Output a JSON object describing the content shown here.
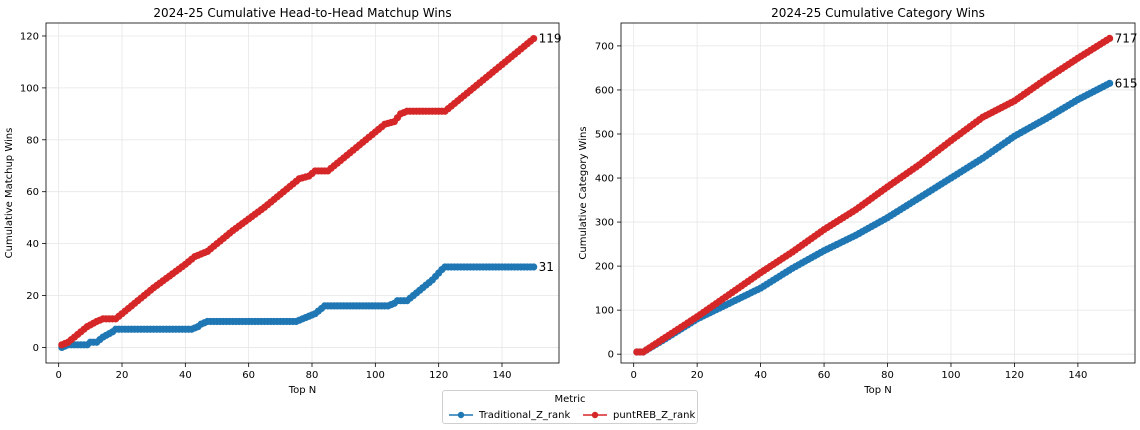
{
  "colors": {
    "traditional": "#1f77b4",
    "punt": "#d62728",
    "grid": "#e6e6e6"
  },
  "legend": {
    "title": "Metric",
    "entries": [
      {
        "label": "Traditional_Z_rank",
        "color": "#1f77b4"
      },
      {
        "label": "puntREB_Z_rank",
        "color": "#d62728"
      }
    ]
  },
  "chart_data": [
    {
      "type": "line",
      "title": "2024-25 Cumulative Head-to-Head Matchup Wins",
      "xlabel": "Top N",
      "ylabel": "Cumulative Matchup Wins",
      "xlim": [
        -4,
        158
      ],
      "ylim": [
        -6,
        125
      ],
      "xticks": [
        0,
        20,
        40,
        60,
        80,
        100,
        120,
        140
      ],
      "yticks": [
        0,
        20,
        40,
        60,
        80,
        100,
        120
      ],
      "grid": true,
      "series": [
        {
          "name": "Traditional_Z_rank",
          "color": "#1f77b4",
          "points": [
            [
              1,
              0
            ],
            [
              3,
              1
            ],
            [
              9,
              1
            ],
            [
              10,
              2
            ],
            [
              12,
              2
            ],
            [
              14,
              4
            ],
            [
              17,
              6
            ],
            [
              18,
              7
            ],
            [
              42,
              7
            ],
            [
              44,
              8
            ],
            [
              45,
              9
            ],
            [
              47,
              10
            ],
            [
              75,
              10
            ],
            [
              77,
              11
            ],
            [
              79,
              12
            ],
            [
              81,
              13
            ],
            [
              83,
              15
            ],
            [
              84,
              16
            ],
            [
              104,
              16
            ],
            [
              106,
              17
            ],
            [
              107,
              18
            ],
            [
              110,
              18
            ],
            [
              114,
              22
            ],
            [
              118,
              26
            ],
            [
              121,
              30
            ],
            [
              122,
              31
            ],
            [
              150,
              31
            ]
          ],
          "end_label": "31"
        },
        {
          "name": "puntREB_Z_rank",
          "color": "#d62728",
          "points": [
            [
              1,
              1
            ],
            [
              3,
              2
            ],
            [
              6,
              5
            ],
            [
              9,
              8
            ],
            [
              12,
              10
            ],
            [
              14,
              11
            ],
            [
              18,
              11
            ],
            [
              20,
              13
            ],
            [
              30,
              23
            ],
            [
              40,
              32
            ],
            [
              43,
              35
            ],
            [
              45,
              36
            ],
            [
              47,
              37
            ],
            [
              55,
              45
            ],
            [
              65,
              54
            ],
            [
              74,
              63
            ],
            [
              76,
              65
            ],
            [
              79,
              66
            ],
            [
              81,
              68
            ],
            [
              85,
              68
            ],
            [
              95,
              78
            ],
            [
              103,
              86
            ],
            [
              106,
              87
            ],
            [
              108,
              90
            ],
            [
              110,
              91
            ],
            [
              122,
              91
            ],
            [
              130,
              99
            ],
            [
              140,
              109
            ],
            [
              150,
              119
            ]
          ],
          "end_label": "119"
        }
      ]
    },
    {
      "type": "line",
      "title": "2024-25 Cumulative Category Wins",
      "xlabel": "Top N",
      "ylabel": "Cumulative Category Wins",
      "xlim": [
        -4,
        158
      ],
      "ylim": [
        -20,
        752
      ],
      "xticks": [
        0,
        20,
        40,
        60,
        80,
        100,
        120,
        140
      ],
      "yticks": [
        0,
        100,
        200,
        300,
        400,
        500,
        600,
        700
      ],
      "grid": true,
      "series": [
        {
          "name": "Traditional_Z_rank",
          "color": "#1f77b4",
          "points": [
            [
              1,
              5
            ],
            [
              3,
              5
            ],
            [
              10,
              35
            ],
            [
              20,
              80
            ],
            [
              30,
              115
            ],
            [
              40,
              150
            ],
            [
              50,
              195
            ],
            [
              60,
              235
            ],
            [
              70,
              270
            ],
            [
              80,
              310
            ],
            [
              90,
              355
            ],
            [
              100,
              400
            ],
            [
              110,
              445
            ],
            [
              120,
              495
            ],
            [
              130,
              535
            ],
            [
              140,
              578
            ],
            [
              150,
              615
            ]
          ],
          "end_label": "615"
        },
        {
          "name": "puntREB_Z_rank",
          "color": "#d62728",
          "points": [
            [
              1,
              5
            ],
            [
              3,
              5
            ],
            [
              10,
              38
            ],
            [
              20,
              85
            ],
            [
              30,
              135
            ],
            [
              40,
              185
            ],
            [
              50,
              232
            ],
            [
              60,
              283
            ],
            [
              70,
              328
            ],
            [
              80,
              380
            ],
            [
              90,
              430
            ],
            [
              100,
              485
            ],
            [
              110,
              538
            ],
            [
              120,
              575
            ],
            [
              130,
              625
            ],
            [
              140,
              672
            ],
            [
              150,
              717
            ]
          ],
          "end_label": "717"
        }
      ]
    }
  ]
}
